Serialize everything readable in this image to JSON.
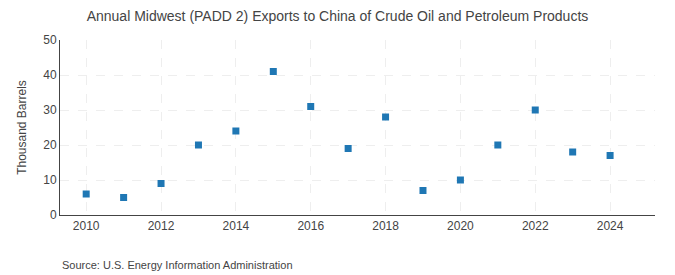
{
  "chart_data": {
    "type": "scatter",
    "title": "Annual Midwest (PADD 2) Exports to China of Crude Oil and Petroleum Products",
    "ylabel": "Thousand Barrels",
    "annotations": [
      "Source: U.S. Energy Information Administration"
    ],
    "x": [
      2010,
      2011,
      2012,
      2013,
      2014,
      2015,
      2016,
      2017,
      2018,
      2019,
      2020,
      2021,
      2022,
      2023,
      2024
    ],
    "values": [
      6,
      5,
      9,
      20,
      24,
      41,
      31,
      19,
      28,
      7,
      10,
      20,
      30,
      18,
      17
    ],
    "marker": "square",
    "xlim": [
      2009.3,
      2025.2
    ],
    "xticks": [
      2010,
      2012,
      2014,
      2016,
      2018,
      2020,
      2022,
      2024
    ],
    "ylim": [
      0,
      50
    ],
    "yticks": [
      0,
      10,
      20,
      30,
      40,
      50
    ],
    "grid": true
  }
}
